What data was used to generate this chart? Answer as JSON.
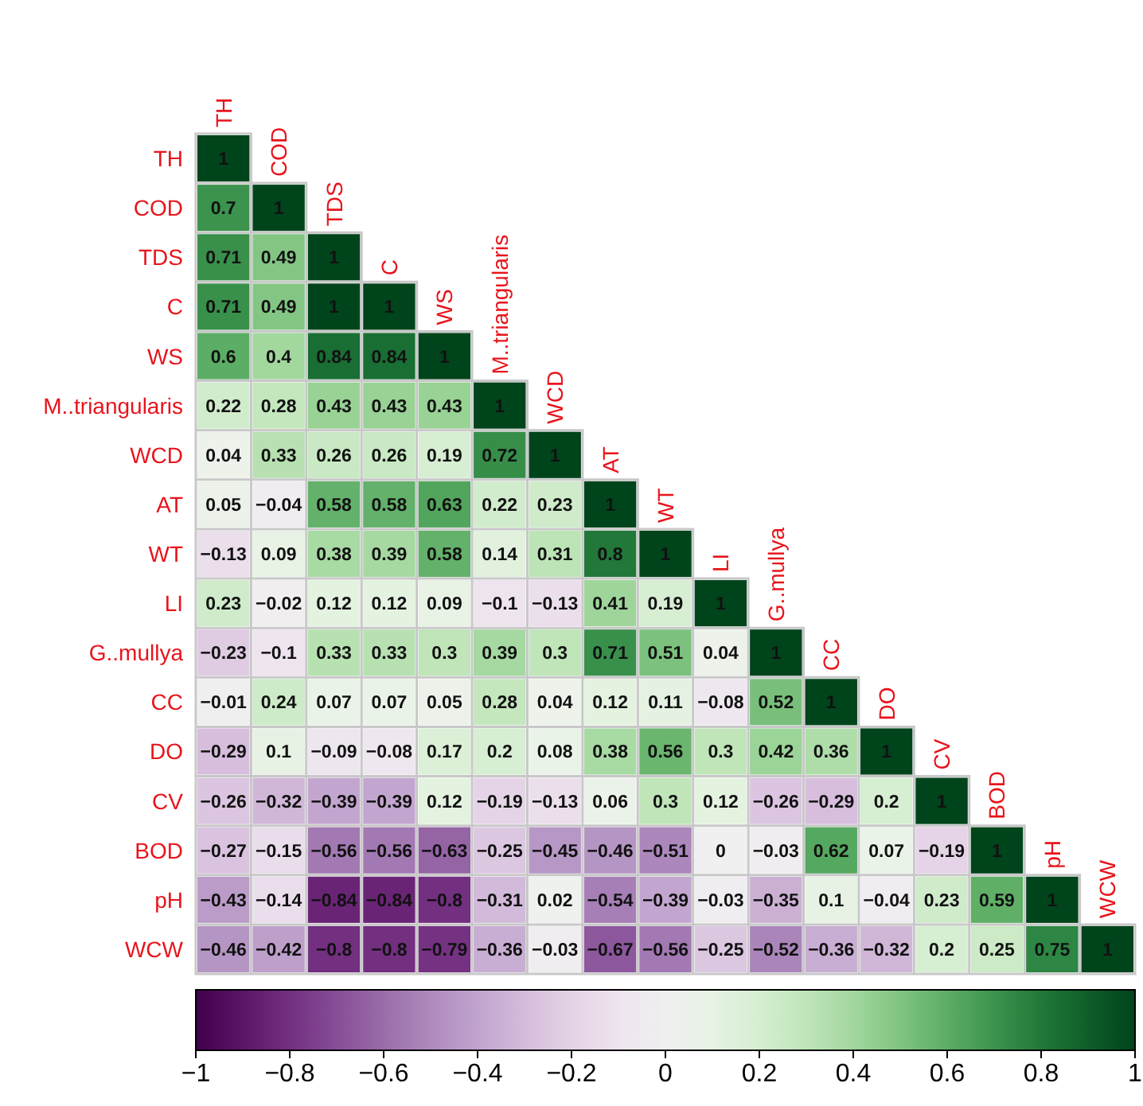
{
  "chart_data": {
    "type": "heatmap",
    "categories": [
      "TH",
      "COD",
      "TDS",
      "C",
      "WS",
      "M..triangularis",
      "WCD",
      "AT",
      "WT",
      "LI",
      "G..mullya",
      "CC",
      "DO",
      "CV",
      "BOD",
      "pH",
      "WCW"
    ],
    "y_categories": [
      "TH",
      "COD",
      "TDS",
      "C",
      "WS",
      "M..triangularis",
      "WCD",
      "AT",
      "WT",
      "LI",
      "G..mullya",
      "CC",
      "DO",
      "CV",
      "BOD",
      "pH",
      "WCW"
    ],
    "cells": [
      [
        1,
        null,
        null,
        null,
        null,
        null,
        null,
        null,
        null,
        null,
        null,
        null,
        null,
        null,
        null,
        null,
        null
      ],
      [
        0.7,
        1,
        null,
        null,
        null,
        null,
        null,
        null,
        null,
        null,
        null,
        null,
        null,
        null,
        null,
        null,
        null
      ],
      [
        0.71,
        0.49,
        1,
        null,
        null,
        null,
        null,
        null,
        null,
        null,
        null,
        null,
        null,
        null,
        null,
        null,
        null
      ],
      [
        0.71,
        0.49,
        1,
        1,
        null,
        null,
        null,
        null,
        null,
        null,
        null,
        null,
        null,
        null,
        null,
        null,
        null
      ],
      [
        0.6,
        0.4,
        0.84,
        0.84,
        1,
        null,
        null,
        null,
        null,
        null,
        null,
        null,
        null,
        null,
        null,
        null,
        null
      ],
      [
        0.22,
        0.28,
        0.43,
        0.43,
        0.43,
        1,
        null,
        null,
        null,
        null,
        null,
        null,
        null,
        null,
        null,
        null,
        null
      ],
      [
        0.04,
        0.33,
        0.26,
        0.26,
        0.19,
        0.72,
        1,
        null,
        null,
        null,
        null,
        null,
        null,
        null,
        null,
        null,
        null
      ],
      [
        0.05,
        -0.04,
        0.58,
        0.58,
        0.63,
        0.22,
        0.23,
        1,
        null,
        null,
        null,
        null,
        null,
        null,
        null,
        null,
        null
      ],
      [
        -0.13,
        0.09,
        0.38,
        0.39,
        0.58,
        0.14,
        0.31,
        0.8,
        1,
        null,
        null,
        null,
        null,
        null,
        null,
        null,
        null
      ],
      [
        0.23,
        -0.02,
        0.12,
        0.12,
        0.09,
        -0.1,
        -0.13,
        0.41,
        0.19,
        1,
        null,
        null,
        null,
        null,
        null,
        null,
        null
      ],
      [
        -0.23,
        -0.1,
        0.33,
        0.33,
        0.3,
        0.39,
        0.3,
        0.71,
        0.51,
        0.04,
        1,
        null,
        null,
        null,
        null,
        null,
        null
      ],
      [
        -0.01,
        0.24,
        0.07,
        0.07,
        0.05,
        0.28,
        0.04,
        0.12,
        0.11,
        -0.08,
        0.52,
        1,
        null,
        null,
        null,
        null,
        null
      ],
      [
        -0.29,
        0.1,
        -0.09,
        -0.08,
        0.17,
        0.2,
        0.08,
        0.38,
        0.56,
        0.3,
        0.42,
        0.36,
        1,
        null,
        null,
        null,
        null
      ],
      [
        -0.26,
        -0.32,
        -0.39,
        -0.39,
        0.12,
        -0.19,
        -0.13,
        0.06,
        0.3,
        0.12,
        -0.26,
        -0.29,
        0.2,
        1,
        null,
        null,
        null
      ],
      [
        -0.27,
        -0.15,
        -0.56,
        -0.56,
        -0.63,
        -0.25,
        -0.45,
        -0.46,
        -0.51,
        0,
        -0.03,
        0.62,
        0.07,
        -0.19,
        1,
        null,
        null
      ],
      [
        -0.43,
        -0.14,
        -0.84,
        -0.84,
        -0.8,
        -0.31,
        0.02,
        -0.54,
        -0.39,
        -0.03,
        -0.35,
        0.1,
        -0.04,
        0.23,
        0.59,
        1,
        null
      ],
      [
        -0.46,
        -0.42,
        -0.8,
        -0.8,
        -0.79,
        -0.36,
        -0.03,
        -0.67,
        -0.56,
        -0.25,
        -0.52,
        -0.36,
        -0.32,
        0.2,
        0.25,
        0.75,
        1
      ]
    ],
    "data_labels": true,
    "clim": [
      -1,
      1
    ],
    "cticks": [
      -1,
      -0.8,
      -0.6,
      -0.4,
      -0.2,
      0,
      0.2,
      0.4,
      0.6,
      0.8,
      1
    ]
  }
}
